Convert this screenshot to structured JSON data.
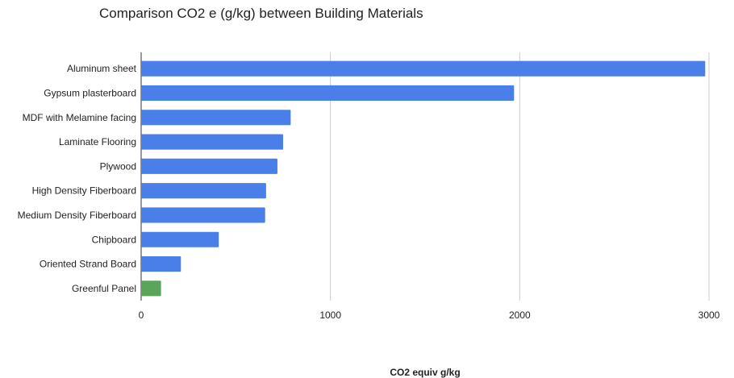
{
  "chart_data": {
    "type": "bar",
    "orientation": "horizontal",
    "title": "Comparison CO2 e (g/kg) between Building Materials",
    "xlabel": "CO2 equiv g/kg",
    "ylabel": "",
    "xlim": [
      0,
      3000
    ],
    "xticks": [
      0,
      1000,
      2000,
      3000
    ],
    "grid": true,
    "legend": "none",
    "categories": [
      "Aluminum sheet",
      "Gypsum plasterboard",
      "MDF with Melamine facing",
      "Laminate Flooring",
      "Plywood",
      "High Density Fiberboard",
      "Medium Density Fiberboard",
      "Chipboard",
      "Oriented Strand Board",
      "Greenful Panel"
    ],
    "values": [
      2980,
      1970,
      790,
      750,
      720,
      660,
      655,
      410,
      210,
      105
    ],
    "colors": [
      "#4a7ee8",
      "#4a7ee8",
      "#4a7ee8",
      "#4a7ee8",
      "#4a7ee8",
      "#4a7ee8",
      "#4a7ee8",
      "#4a7ee8",
      "#4a7ee8",
      "#5aa55a"
    ]
  }
}
